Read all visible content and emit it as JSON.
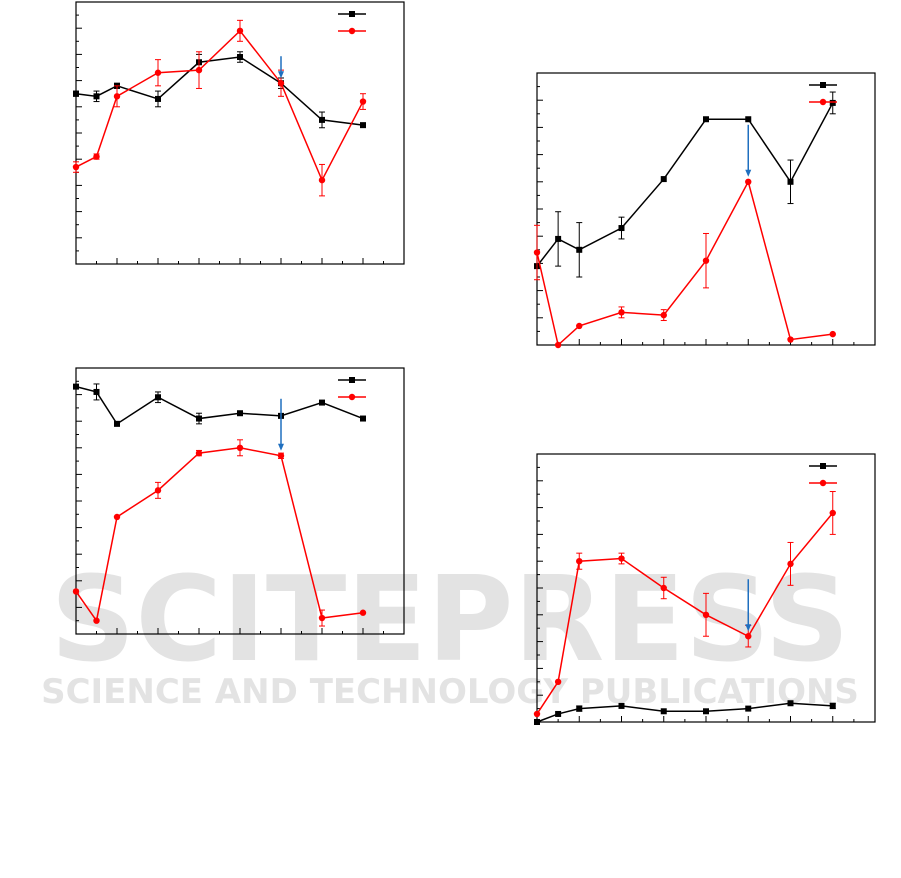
{
  "watermark": {
    "brand": "SCITEPRESS",
    "tagline": "SCIENCE AND TECHNOLOGY PUBLICATIONS",
    "color": "#e0e0e0"
  },
  "colors": {
    "series_black": "#000000",
    "series_red": "#ff0000",
    "arrow": "#1f6fbf",
    "axis": "#000000"
  },
  "chart_data": [
    {
      "type": "line",
      "tick_labels_shown": false,
      "x": [
        0,
        0.5,
        1,
        2,
        3,
        4,
        5,
        6,
        7
      ],
      "xlim": [
        0,
        8
      ],
      "ylim": [
        0,
        10
      ],
      "grid": false,
      "legend": "top-right",
      "series": [
        {
          "color": "#000000",
          "marker": "square",
          "y": [
            6.5,
            6.4,
            6.8,
            6.3,
            7.7,
            7.9,
            6.9,
            5.5,
            5.3
          ],
          "err": [
            0.1,
            0.2,
            0.1,
            0.3,
            0.3,
            0.2,
            0.2,
            0.3,
            0
          ]
        },
        {
          "color": "#ff0000",
          "marker": "circle",
          "y": [
            3.7,
            4.1,
            6.4,
            7.3,
            7.4,
            8.9,
            6.9,
            3.2,
            6.2
          ],
          "err": [
            0.2,
            0.1,
            0.4,
            0.5,
            0.7,
            0.4,
            0.5,
            0.6,
            0.3
          ]
        }
      ],
      "annotation_arrow_x": 5
    },
    {
      "type": "line",
      "tick_labels_shown": false,
      "x": [
        0,
        0.5,
        1,
        2,
        3,
        4,
        5,
        6,
        7
      ],
      "xlim": [
        0,
        8
      ],
      "ylim": [
        0,
        10
      ],
      "grid": false,
      "legend": "top-right",
      "series": [
        {
          "color": "#000000",
          "marker": "square",
          "y": [
            2.9,
            3.9,
            3.5,
            4.3,
            6.1,
            8.3,
            8.3,
            6.0,
            8.9
          ],
          "err": [
            0,
            1.0,
            1.0,
            0.4,
            0,
            0,
            0,
            0.8,
            0.4
          ]
        },
        {
          "color": "#ff0000",
          "marker": "circle",
          "y": [
            3.4,
            0.0,
            0.7,
            1.2,
            1.1,
            3.1,
            6.0,
            0.2,
            0.4
          ],
          "err": [
            1.0,
            0,
            0,
            0.2,
            0.2,
            1.0,
            0,
            0,
            0
          ]
        }
      ],
      "annotation_arrow_x": 5
    },
    {
      "type": "line",
      "tick_labels_shown": false,
      "x": [
        0,
        0.5,
        1,
        2,
        3,
        4,
        5,
        6,
        7
      ],
      "xlim": [
        0,
        8
      ],
      "ylim": [
        0,
        10
      ],
      "grid": false,
      "legend": "top-right",
      "series": [
        {
          "color": "#000000",
          "marker": "square",
          "y": [
            9.3,
            9.1,
            7.9,
            8.9,
            8.1,
            8.3,
            8.2,
            8.7,
            8.1
          ],
          "err": [
            0,
            0.3,
            0,
            0.2,
            0.2,
            0,
            0,
            0,
            0
          ]
        },
        {
          "color": "#ff0000",
          "marker": "circle",
          "y": [
            1.6,
            0.5,
            4.4,
            5.4,
            6.8,
            7.0,
            6.7,
            0.6,
            0.8
          ],
          "err": [
            0,
            0,
            0,
            0.3,
            0.1,
            0.3,
            0.1,
            0.3,
            0
          ]
        }
      ],
      "annotation_arrow_x": 5
    },
    {
      "type": "line",
      "tick_labels_shown": false,
      "x": [
        0,
        0.5,
        1,
        2,
        3,
        4,
        5,
        6,
        7
      ],
      "xlim": [
        0,
        8
      ],
      "ylim": [
        0,
        10
      ],
      "grid": false,
      "legend": "top-right",
      "series": [
        {
          "color": "#000000",
          "marker": "square",
          "y": [
            0.0,
            0.3,
            0.5,
            0.6,
            0.4,
            0.4,
            0.5,
            0.7,
            0.6
          ],
          "err": [
            0,
            0,
            0.1,
            0,
            0,
            0,
            0,
            0,
            0.1
          ]
        },
        {
          "color": "#ff0000",
          "marker": "circle",
          "y": [
            0.3,
            1.5,
            6.0,
            6.1,
            5.0,
            4.0,
            3.2,
            5.9,
            7.8
          ],
          "err": [
            0,
            0,
            0.3,
            0.2,
            0.4,
            0.8,
            0.4,
            0.8,
            0.8
          ]
        }
      ],
      "annotation_arrow_x": 5
    }
  ]
}
